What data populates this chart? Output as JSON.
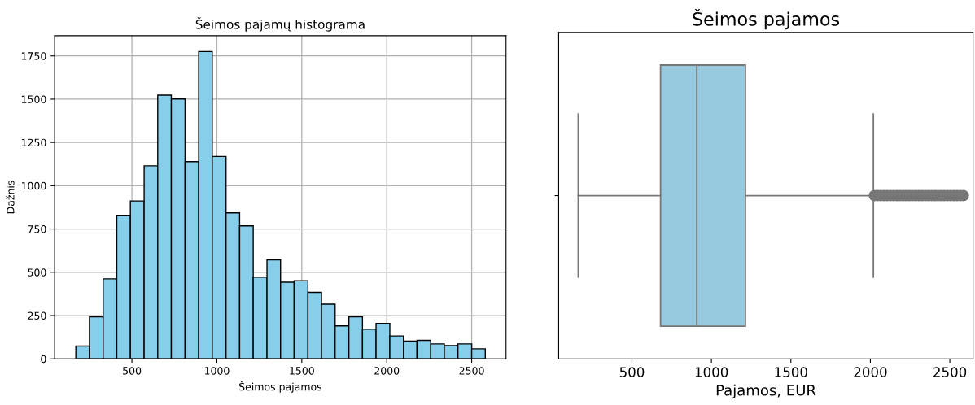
{
  "chart_data": [
    {
      "type": "histogram",
      "title": "Šeimos pajamų histograma",
      "xlabel": "Šeimos pajamos",
      "ylabel": "Dažnis",
      "color": "#87ceeb",
      "bins": [
        170,
        250,
        331,
        411,
        491,
        572,
        652,
        732,
        813,
        893,
        973,
        1054,
        1134,
        1214,
        1295,
        1375,
        1455,
        1536,
        1616,
        1696,
        1777,
        1857,
        1937,
        2018,
        2098,
        2178,
        2259,
        2339,
        2419,
        2500,
        2580
      ],
      "values": [
        74,
        243,
        462,
        829,
        912,
        1115,
        1523,
        1501,
        1139,
        1775,
        1169,
        843,
        768,
        472,
        572,
        443,
        451,
        384,
        316,
        190,
        243,
        171,
        205,
        132,
        102,
        107,
        86,
        77,
        86,
        58
      ],
      "xlim": [
        45,
        2702
      ],
      "xticks": [
        500,
        1000,
        1500,
        2000,
        2500
      ],
      "ylim": [
        0,
        1867
      ],
      "yticks": [
        0,
        250,
        500,
        750,
        1000,
        1250,
        1500,
        1750
      ],
      "grid": true
    },
    {
      "type": "box",
      "title": "Šeimos pajamos",
      "xlabel": "Pajamos, EUR",
      "orientation": "horizontal",
      "color": "#97c9df",
      "categories": [
        null
      ],
      "boxes": [
        {
          "low": 162,
          "q1": 680,
          "median": 908,
          "q3": 1214,
          "high": 2019,
          "outliers": [
            2025,
            2045,
            2065,
            2085,
            2105,
            2125,
            2145,
            2165,
            2185,
            2205,
            2225,
            2245,
            2265,
            2285,
            2305,
            2325,
            2345,
            2365,
            2385,
            2405,
            2425,
            2445,
            2465,
            2485,
            2505,
            2525,
            2545,
            2565,
            2585
          ]
        }
      ],
      "xlim": [
        39,
        2646
      ],
      "xticks": [
        500,
        1000,
        1500,
        2000,
        2500
      ],
      "tick_labels": "x",
      "grid": false
    }
  ]
}
